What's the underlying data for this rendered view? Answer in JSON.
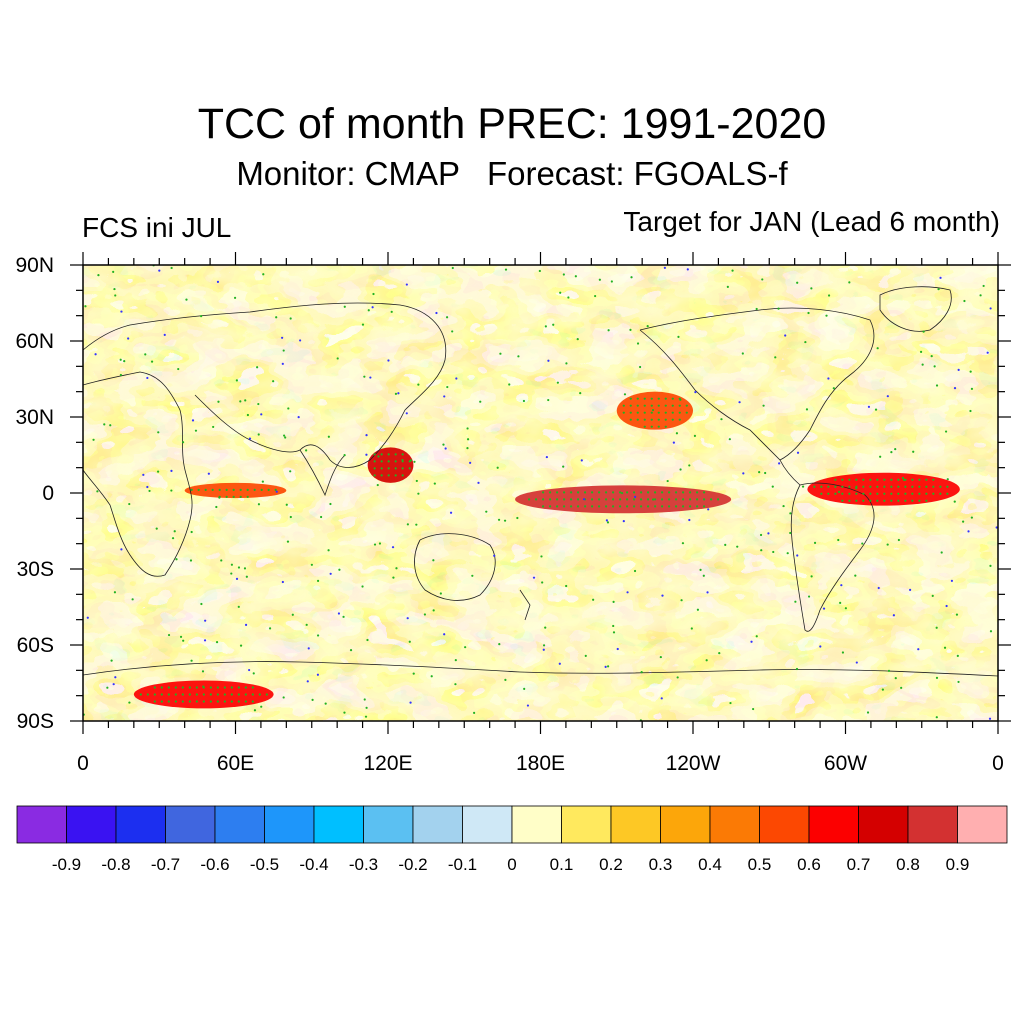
{
  "title": "TCC of month PREC: 1991-2020",
  "subtitle": "Monitor: CMAP   Forecast: FGOALS-f",
  "left_string": "FCS ini JUL",
  "right_string": "Target for JAN (Lead 6 month)",
  "map": {
    "projection": "cylindrical equidistant",
    "center_longitude": 180,
    "lon_range": [
      0,
      360
    ],
    "lat_range": [
      -90,
      90
    ],
    "stippling": "green dots mark significant TCC; blue dots mark significant negative TCC",
    "y_ticks": [
      {
        "lat": 90,
        "label": "90N"
      },
      {
        "lat": 60,
        "label": "60N"
      },
      {
        "lat": 30,
        "label": "30N"
      },
      {
        "lat": 0,
        "label": "0"
      },
      {
        "lat": -30,
        "label": "30S"
      },
      {
        "lat": -60,
        "label": "60S"
      },
      {
        "lat": -90,
        "label": "90S"
      }
    ],
    "x_ticks": [
      {
        "lon": 0,
        "label": "0"
      },
      {
        "lon": 60,
        "label": "60E"
      },
      {
        "lon": 120,
        "label": "120E"
      },
      {
        "lon": 180,
        "label": "180E"
      },
      {
        "lon": 240,
        "label": "120W"
      },
      {
        "lon": 300,
        "label": "60W"
      },
      {
        "lon": 360,
        "label": "0"
      }
    ],
    "features": [
      {
        "name": "equatorial central Pacific",
        "lon": [
          170,
          255
        ],
        "lat": [
          -8,
          3
        ],
        "tcc": 0.8
      },
      {
        "name": "maritime continent / Philippine Sea",
        "lon": [
          112,
          130
        ],
        "lat": [
          4,
          18
        ],
        "tcc": 0.7
      },
      {
        "name": "equatorial Atlantic / northern South America",
        "lon": [
          285,
          345
        ],
        "lat": [
          -5,
          8
        ],
        "tcc": 0.6
      },
      {
        "name": "Southern Ocean near 60E",
        "lon": [
          20,
          75
        ],
        "lat": [
          -85,
          -74
        ],
        "tcc": 0.6
      },
      {
        "name": "equatorial Indian Ocean",
        "lon": [
          40,
          80
        ],
        "lat": [
          -2,
          4
        ],
        "tcc": 0.5
      },
      {
        "name": "North Pacific / Gulf of Alaska",
        "lon": [
          210,
          240
        ],
        "lat": [
          25,
          40
        ],
        "tcc": 0.5
      }
    ]
  },
  "colorbar": {
    "colors": [
      "#8a2be2",
      "#3a12f2",
      "#1c2ff0",
      "#4066df",
      "#2d7ef0",
      "#1e96fa",
      "#00bfff",
      "#5bc0f2",
      "#a3d2ee",
      "#cfe8f6",
      "#fffec8",
      "#ffe95e",
      "#fdc825",
      "#fca60a",
      "#fb7a05",
      "#fc4802",
      "#fc0000",
      "#d40000",
      "#d33131",
      "#ffafb0"
    ],
    "labels": [
      "-0.9",
      "-0.8",
      "-0.7",
      "-0.6",
      "-0.5",
      "-0.4",
      "-0.3",
      "-0.2",
      "-0.1",
      "0",
      "0.1",
      "0.2",
      "0.3",
      "0.4",
      "0.5",
      "0.6",
      "0.7",
      "0.8",
      "0.9"
    ]
  }
}
